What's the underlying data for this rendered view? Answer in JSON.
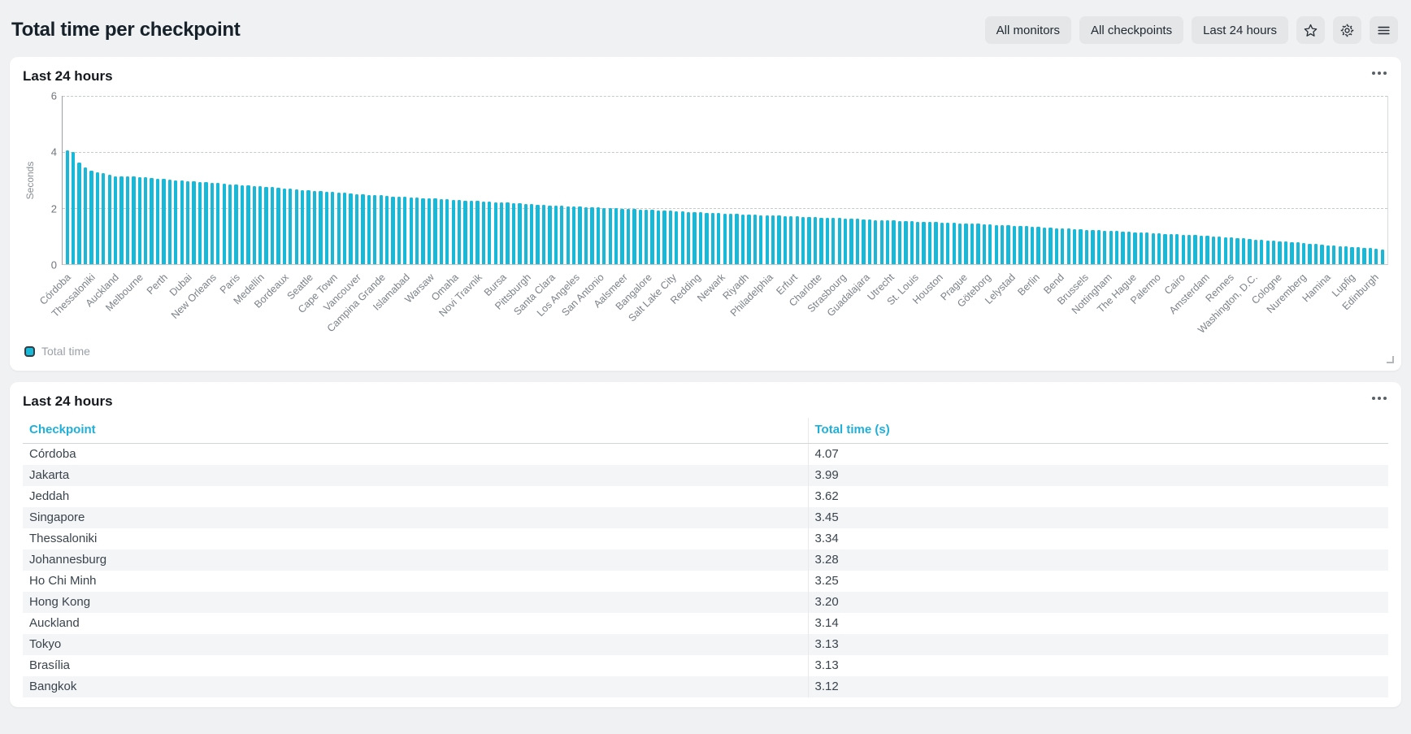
{
  "header": {
    "title": "Total time per checkpoint",
    "filters": [
      {
        "label": "All monitors"
      },
      {
        "label": "All checkpoints"
      },
      {
        "label": "Last 24 hours"
      }
    ],
    "icon_buttons": [
      "star",
      "settings",
      "menu"
    ]
  },
  "colors": {
    "accent_cyan": "#18b8d9",
    "page_background": "#f0f1f2",
    "button_background": "#e4e6e8",
    "table_stripe": "#f4f5f6"
  },
  "chart_card": {
    "title": "Last 24 hours",
    "menu_icon": "ellipsis",
    "legend_label": "Total time"
  },
  "chart_data": {
    "type": "bar",
    "title": "Last 24 hours",
    "series_name": "Total time",
    "xlabel": "",
    "ylabel": "Seconds",
    "ylim": [
      0,
      6
    ],
    "yticks": [
      0,
      2,
      4,
      6
    ],
    "grid": "horizontal dashed at 2, 4, 6",
    "legend_position": "bottom-left",
    "bar_color": "#18b8d9",
    "tick_label_every": 4,
    "tick_labels": [
      "Córdoba",
      "Thessaloniki",
      "Auckland",
      "Melbourne",
      "Perth",
      "Dubai",
      "New Orleans",
      "Paris",
      "Medellín",
      "Bordeaux",
      "Seattle",
      "Cape Town",
      "Vancouver",
      "Campina Grande",
      "Islamabad",
      "Warsaw",
      "Omaha",
      "Novi Travnik",
      "Bursa",
      "Pittsburgh",
      "Santa Clara",
      "Los Angeles",
      "San Antonio",
      "Aalsmeer",
      "Bangalore",
      "Salt Lake City",
      "Redding",
      "Newark",
      "Riyadh",
      "Philadelphia",
      "Erfurt",
      "Charlotte",
      "Strasbourg",
      "Guadalajara",
      "Utrecht",
      "St. Louis",
      "Houston",
      "Prague",
      "Göteborg",
      "Lelystad",
      "Berlin",
      "Bend",
      "Brussels",
      "Nottingham",
      "The Hague",
      "Palermo",
      "Cairo",
      "Amsterdam",
      "Rennes",
      "Washington, D.C.",
      "Cologne",
      "Nuremberg",
      "Hamina",
      "Lupfig",
      "Edinburgh"
    ],
    "values": [
      4.07,
      3.99,
      3.62,
      3.45,
      3.34,
      3.28,
      3.25,
      3.2,
      3.14,
      3.13,
      3.13,
      3.12,
      3.1,
      3.09,
      3.07,
      3.05,
      3.04,
      3.02,
      3.0,
      2.99,
      2.97,
      2.95,
      2.94,
      2.92,
      2.9,
      2.89,
      2.87,
      2.85,
      2.84,
      2.82,
      2.8,
      2.79,
      2.77,
      2.75,
      2.74,
      2.72,
      2.7,
      2.69,
      2.67,
      2.65,
      2.64,
      2.62,
      2.6,
      2.59,
      2.57,
      2.55,
      2.54,
      2.52,
      2.5,
      2.49,
      2.47,
      2.46,
      2.45,
      2.44,
      2.42,
      2.41,
      2.4,
      2.39,
      2.37,
      2.36,
      2.35,
      2.34,
      2.32,
      2.31,
      2.3,
      2.29,
      2.27,
      2.26,
      2.25,
      2.24,
      2.22,
      2.21,
      2.2,
      2.19,
      2.17,
      2.16,
      2.15,
      2.14,
      2.12,
      2.11,
      2.1,
      2.09,
      2.08,
      2.07,
      2.06,
      2.05,
      2.04,
      2.03,
      2.02,
      2.01,
      2.0,
      1.99,
      1.98,
      1.97,
      1.96,
      1.95,
      1.94,
      1.93,
      1.92,
      1.91,
      1.9,
      1.89,
      1.88,
      1.87,
      1.86,
      1.85,
      1.84,
      1.83,
      1.82,
      1.81,
      1.8,
      1.79,
      1.78,
      1.77,
      1.76,
      1.75,
      1.74,
      1.74,
      1.73,
      1.72,
      1.71,
      1.7,
      1.69,
      1.68,
      1.67,
      1.66,
      1.66,
      1.65,
      1.64,
      1.63,
      1.62,
      1.61,
      1.6,
      1.59,
      1.58,
      1.58,
      1.57,
      1.56,
      1.55,
      1.54,
      1.53,
      1.52,
      1.51,
      1.5,
      1.5,
      1.49,
      1.48,
      1.47,
      1.46,
      1.46,
      1.45,
      1.44,
      1.43,
      1.42,
      1.4,
      1.39,
      1.38,
      1.37,
      1.36,
      1.35,
      1.34,
      1.32,
      1.31,
      1.3,
      1.29,
      1.28,
      1.27,
      1.26,
      1.24,
      1.23,
      1.22,
      1.21,
      1.2,
      1.19,
      1.18,
      1.16,
      1.15,
      1.14,
      1.13,
      1.12,
      1.11,
      1.1,
      1.08,
      1.07,
      1.06,
      1.05,
      1.04,
      1.03,
      1.02,
      1.01,
      1.0,
      0.98,
      0.97,
      0.95,
      0.93,
      0.92,
      0.9,
      0.88,
      0.87,
      0.85,
      0.83,
      0.82,
      0.8,
      0.78,
      0.77,
      0.75,
      0.73,
      0.72,
      0.7,
      0.68,
      0.67,
      0.65,
      0.63,
      0.62,
      0.6,
      0.58,
      0.57,
      0.55,
      0.52
    ]
  },
  "table_card": {
    "title": "Last 24 hours",
    "menu_icon": "ellipsis",
    "columns": [
      "Checkpoint",
      "Total time (s)"
    ],
    "rows": [
      [
        "Córdoba",
        "4.07"
      ],
      [
        "Jakarta",
        "3.99"
      ],
      [
        "Jeddah",
        "3.62"
      ],
      [
        "Singapore",
        "3.45"
      ],
      [
        "Thessaloniki",
        "3.34"
      ],
      [
        "Johannesburg",
        "3.28"
      ],
      [
        "Ho Chi Minh",
        "3.25"
      ],
      [
        "Hong Kong",
        "3.20"
      ],
      [
        "Auckland",
        "3.14"
      ],
      [
        "Tokyo",
        "3.13"
      ],
      [
        "Brasília",
        "3.13"
      ],
      [
        "Bangkok",
        "3.12"
      ]
    ]
  }
}
